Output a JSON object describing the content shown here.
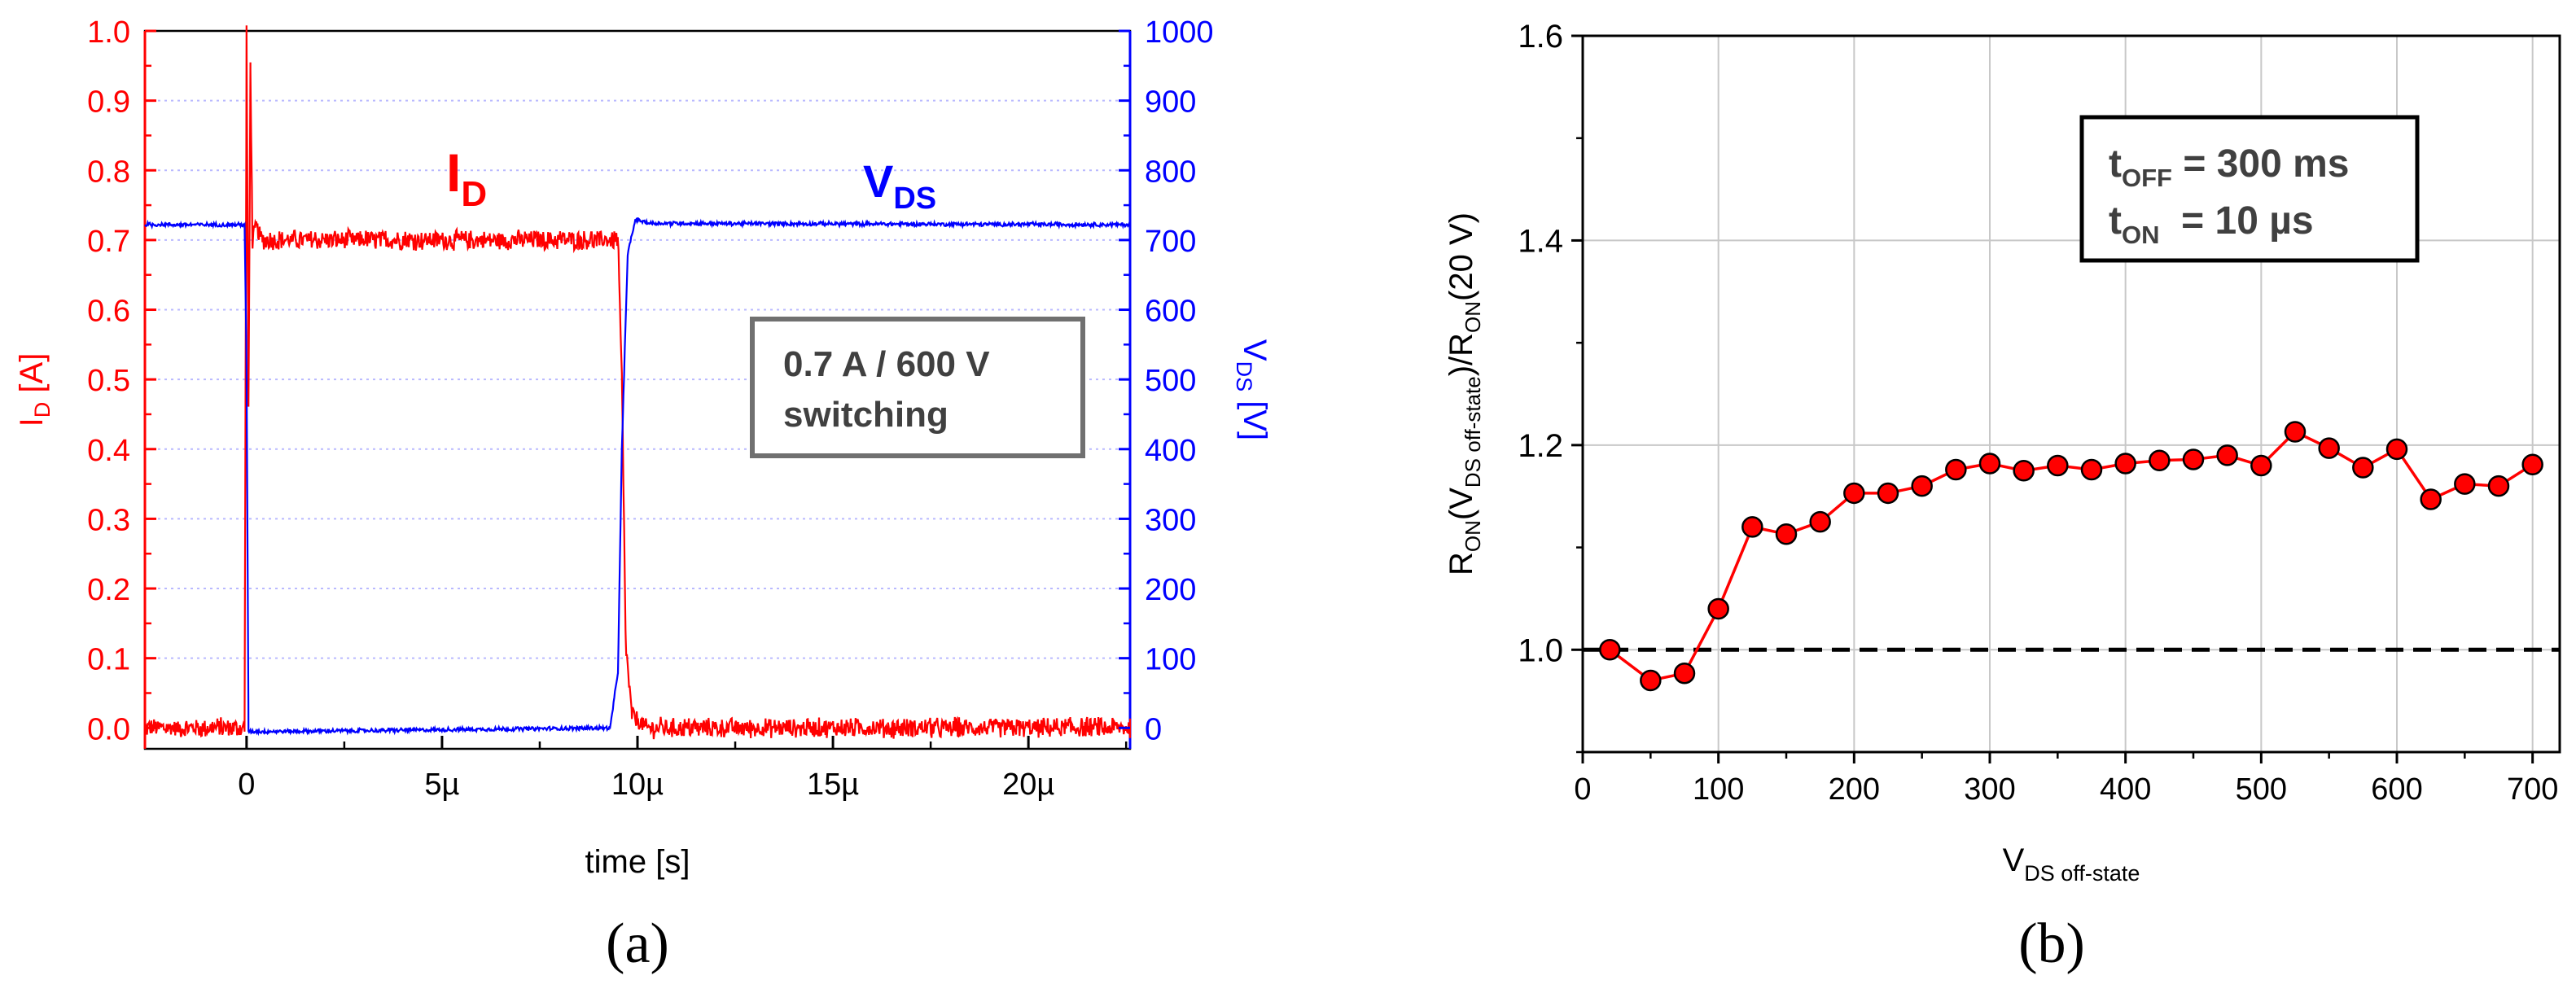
{
  "colors": {
    "current": "#ff0000",
    "voltage": "#0000ff",
    "text": "#000000",
    "grid_a": "#b9b9ff",
    "grid_b": "#c8c8c8",
    "marker_edge": "#000000"
  },
  "chart_data": [
    {
      "type": "line",
      "panel_label": "(a)",
      "xlabel": "time [s]",
      "x_ticks": [
        "0",
        "5µ",
        "10µ",
        "15µ",
        "20µ"
      ],
      "x_tick_values": [
        0,
        5,
        10,
        15,
        20
      ],
      "xlim": [
        -2.6,
        22.6
      ],
      "x_unit": "µs",
      "ylabel_left": {
        "main": "I",
        "sub": "D",
        "rest": " [A]"
      },
      "ylabel_right": {
        "main": "V",
        "sub": "DS",
        "rest": " [V]"
      },
      "ylim_left": [
        -0.03,
        1.0
      ],
      "ylim_right": [
        -30,
        1000
      ],
      "left_ticks": [
        "0.0",
        "0.1",
        "0.2",
        "0.3",
        "0.4",
        "0.5",
        "0.6",
        "0.7",
        "0.8",
        "0.9",
        "1.0"
      ],
      "right_ticks": [
        "0",
        "100",
        "200",
        "300",
        "400",
        "500",
        "600",
        "700",
        "800",
        "900",
        "1000"
      ],
      "series": [
        {
          "name": "I_D",
          "label_main": "I",
          "label_sub": "D",
          "axis": "left",
          "x": [
            -2.6,
            -0.05,
            0.0,
            0.05,
            0.1,
            0.15,
            0.25,
            0.4,
            9.5,
            9.6,
            9.7,
            9.85,
            10.2,
            22.6
          ],
          "y": [
            0.0,
            0.0,
            1.0,
            0.45,
            0.95,
            0.7,
            0.72,
            0.7,
            0.7,
            0.5,
            0.12,
            0.02,
            0.0,
            0.0
          ],
          "noise": 0.015
        },
        {
          "name": "V_DS",
          "label_main": "V",
          "label_sub": "DS",
          "axis": "right",
          "x": [
            -2.6,
            -0.05,
            0.0,
            0.05,
            0.3,
            1.0,
            9.3,
            9.5,
            9.6,
            9.75,
            9.95,
            10.3,
            22.6
          ],
          "y": [
            722,
            722,
            520,
            -5,
            -5,
            -5,
            0,
            80,
            400,
            680,
            730,
            724,
            722
          ],
          "noise": 3
        }
      ],
      "annotation": [
        "0.7 A / 600 V",
        "switching"
      ]
    },
    {
      "type": "scatter",
      "panel_label": "(b)",
      "xlabel": {
        "main": "V",
        "sub": "DS off-state"
      },
      "ylabel": {
        "R1": "R",
        "ON1": "ON",
        "open": "(V",
        "DSoff": "DS off-state",
        "close": ")/R",
        "ON2": "ON",
        "tail": "(20 V)"
      },
      "xlim": [
        0,
        720
      ],
      "ylim": [
        0.9,
        1.6
      ],
      "x_ticks": [
        "0",
        "100",
        "200",
        "300",
        "400",
        "500",
        "600",
        "700"
      ],
      "y_ticks": [
        "1.0",
        "1.2",
        "1.4",
        "1.6"
      ],
      "y_tick_values": [
        1.0,
        1.2,
        1.4,
        1.6
      ],
      "grid": true,
      "series": [
        {
          "name": "R_ON ratio",
          "x": [
            20,
            50,
            75,
            100,
            125,
            150,
            175,
            200,
            225,
            250,
            275,
            300,
            325,
            350,
            375,
            400,
            425,
            450,
            475,
            500,
            525,
            550,
            575,
            600,
            625,
            650,
            675,
            700
          ],
          "y": [
            1.0,
            0.97,
            0.977,
            1.04,
            1.12,
            1.113,
            1.125,
            1.153,
            1.153,
            1.16,
            1.176,
            1.182,
            1.175,
            1.18,
            1.176,
            1.182,
            1.185,
            1.186,
            1.19,
            1.18,
            1.213,
            1.197,
            1.178,
            1.196,
            1.147,
            1.162,
            1.16,
            1.181
          ]
        }
      ],
      "reference_line": {
        "y": 1.0,
        "style": "dashed"
      },
      "annotation": {
        "line1": {
          "main": "t",
          "sub": "OFF",
          "rest": " = 300 ms"
        },
        "line2": {
          "main": "t",
          "sub": "ON",
          "rest": "  = 10 µs"
        }
      }
    }
  ]
}
